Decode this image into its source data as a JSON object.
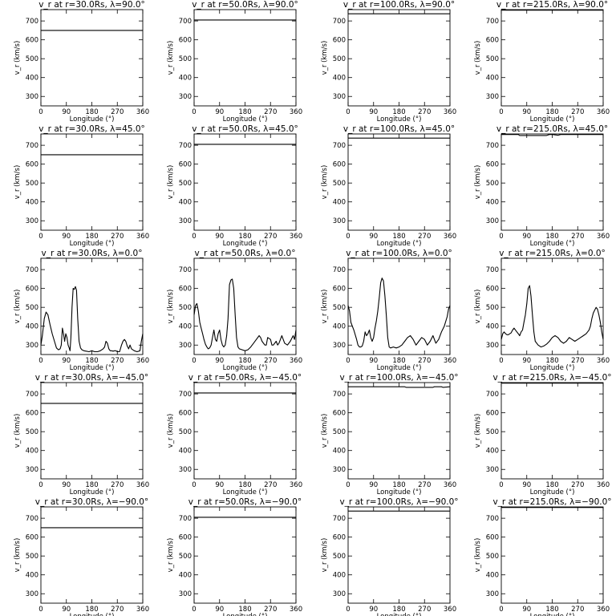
{
  "chart_data": [
    {
      "type": "line",
      "title": "v_r at r=30.0Rs, λ=90.0°",
      "xlabel": "Longitude (°)",
      "ylabel": "v_r (km/s)",
      "xlim": [
        0,
        360
      ],
      "ylim": [
        250,
        760
      ],
      "xticks": [
        "0",
        "90",
        "180",
        "270",
        "360"
      ],
      "yticks": [
        "300",
        "400",
        "500",
        "600",
        "700"
      ],
      "series": [
        {
          "x": [
            0,
            360
          ],
          "y": [
            650,
            650
          ]
        }
      ]
    },
    {
      "type": "line",
      "title": "v_r at r=50.0Rs, λ=90.0°",
      "xlabel": "Longitude (°)",
      "ylabel": "v_r (km/s)",
      "xlim": [
        0,
        360
      ],
      "ylim": [
        250,
        760
      ],
      "xticks": [
        "0",
        "90",
        "180",
        "270",
        "360"
      ],
      "yticks": [
        "300",
        "400",
        "500",
        "600",
        "700"
      ],
      "series": [
        {
          "x": [
            0,
            360
          ],
          "y": [
            705,
            705
          ]
        }
      ]
    },
    {
      "type": "line",
      "title": "v_r at r=100.0Rs, λ=90.0°",
      "xlabel": "Longitude (°)",
      "ylabel": "v_r (km/s)",
      "xlim": [
        0,
        360
      ],
      "ylim": [
        250,
        760
      ],
      "xticks": [
        "0",
        "90",
        "180",
        "270",
        "360"
      ],
      "yticks": [
        "300",
        "400",
        "500",
        "600",
        "700"
      ],
      "series": [
        {
          "x": [
            0,
            360
          ],
          "y": [
            738,
            738
          ]
        }
      ]
    },
    {
      "type": "line",
      "title": "v_r at r=215.0Rs, λ=90.0°",
      "xlabel": "Longitude (°)",
      "ylabel": "v_r (km/s)",
      "xlim": [
        0,
        360
      ],
      "ylim": [
        250,
        760
      ],
      "xticks": [
        "0",
        "90",
        "180",
        "270",
        "360"
      ],
      "yticks": [
        "300",
        "400",
        "500",
        "600",
        "700"
      ],
      "series": [
        {
          "x": [
            0,
            360
          ],
          "y": [
            757,
            757
          ]
        }
      ]
    },
    {
      "type": "line",
      "title": "v_r at r=30.0Rs, λ=45.0°",
      "xlabel": "Longitude (°)",
      "ylabel": "v_r (km/s)",
      "xlim": [
        0,
        360
      ],
      "ylim": [
        250,
        760
      ],
      "xticks": [
        "0",
        "90",
        "180",
        "270",
        "360"
      ],
      "yticks": [
        "300",
        "400",
        "500",
        "600",
        "700"
      ],
      "series": [
        {
          "x": [
            0,
            360
          ],
          "y": [
            650,
            650
          ]
        }
      ]
    },
    {
      "type": "line",
      "title": "v_r at r=50.0Rs, λ=45.0°",
      "xlabel": "Longitude (°)",
      "ylabel": "v_r (km/s)",
      "xlim": [
        0,
        360
      ],
      "ylim": [
        250,
        760
      ],
      "xticks": [
        "0",
        "90",
        "180",
        "270",
        "360"
      ],
      "yticks": [
        "300",
        "400",
        "500",
        "600",
        "700"
      ],
      "series": [
        {
          "x": [
            0,
            360
          ],
          "y": [
            705,
            705
          ]
        }
      ]
    },
    {
      "type": "line",
      "title": "v_r at r=100.0Rs, λ=45.0°",
      "xlabel": "Longitude (°)",
      "ylabel": "v_r (km/s)",
      "xlim": [
        0,
        360
      ],
      "ylim": [
        250,
        760
      ],
      "xticks": [
        "0",
        "90",
        "180",
        "270",
        "360"
      ],
      "yticks": [
        "300",
        "400",
        "500",
        "600",
        "700"
      ],
      "series": [
        {
          "x": [
            0,
            360
          ],
          "y": [
            738,
            738
          ]
        }
      ]
    },
    {
      "type": "line",
      "title": "v_r at r=215.0Rs, λ=45.0°",
      "xlabel": "Longitude (°)",
      "ylabel": "v_r (km/s)",
      "xlim": [
        0,
        360
      ],
      "ylim": [
        250,
        760
      ],
      "xticks": [
        "0",
        "90",
        "180",
        "270",
        "360"
      ],
      "yticks": [
        "300",
        "400",
        "500",
        "600",
        "700"
      ],
      "series": [
        {
          "x": [
            0,
            60,
            65,
            160,
            170,
            180,
            200,
            210,
            360
          ],
          "y": [
            757,
            757,
            752,
            752,
            757,
            757,
            753,
            757,
            757
          ]
        }
      ]
    },
    {
      "type": "line",
      "title": "v_r at r=30.0Rs, λ=0.0°",
      "xlabel": "Longitude (°)",
      "ylabel": "v_r (km/s)",
      "xlim": [
        0,
        360
      ],
      "ylim": [
        250,
        760
      ],
      "xticks": [
        "0",
        "90",
        "180",
        "270",
        "360"
      ],
      "yticks": [
        "300",
        "400",
        "500",
        "600",
        "700"
      ],
      "series": [
        {
          "x": [
            0,
            5,
            12,
            18,
            25,
            32,
            40,
            48,
            55,
            62,
            68,
            72,
            76,
            80,
            84,
            88,
            92,
            96,
            100,
            103,
            106,
            110,
            114,
            118,
            122,
            126,
            130,
            135,
            140,
            145,
            152,
            160,
            170,
            180,
            190,
            200,
            210,
            220,
            225,
            230,
            235,
            240,
            245,
            250,
            255,
            260,
            265,
            270,
            278,
            285,
            290,
            295,
            300,
            305,
            310,
            315,
            320,
            330,
            340,
            350,
            355,
            360
          ],
          "y": [
            300,
            350,
            440,
            475,
            460,
            410,
            360,
            320,
            285,
            275,
            280,
            300,
            390,
            360,
            320,
            360,
            340,
            300,
            285,
            270,
            340,
            500,
            600,
            595,
            610,
            590,
            440,
            320,
            285,
            275,
            270,
            268,
            265,
            270,
            265,
            265,
            270,
            280,
            290,
            320,
            310,
            280,
            270,
            270,
            268,
            270,
            270,
            265,
            265,
            300,
            320,
            330,
            320,
            295,
            280,
            300,
            280,
            270,
            265,
            270,
            320,
            360
          ]
        }
      ]
    },
    {
      "type": "line",
      "title": "v_r at r=50.0Rs, λ=0.0°",
      "xlabel": "Longitude (°)",
      "ylabel": "v_r (km/s)",
      "xlim": [
        0,
        360
      ],
      "ylim": [
        250,
        760
      ],
      "xticks": [
        "0",
        "90",
        "180",
        "270",
        "360"
      ],
      "yticks": [
        "300",
        "400",
        "500",
        "600",
        "700"
      ],
      "series": [
        {
          "x": [
            0,
            5,
            10,
            15,
            20,
            25,
            30,
            35,
            40,
            45,
            50,
            55,
            60,
            65,
            70,
            75,
            80,
            85,
            90,
            95,
            100,
            105,
            110,
            115,
            120,
            125,
            130,
            135,
            140,
            145,
            150,
            155,
            160,
            170,
            180,
            190,
            200,
            210,
            220,
            230,
            235,
            240,
            250,
            255,
            260,
            270,
            275,
            280,
            290,
            295,
            300,
            310,
            315,
            320,
            330,
            340,
            350,
            355,
            360
          ],
          "y": [
            460,
            510,
            520,
            480,
            420,
            390,
            360,
            330,
            305,
            290,
            280,
            285,
            300,
            340,
            380,
            330,
            320,
            360,
            380,
            330,
            300,
            290,
            300,
            350,
            440,
            620,
            645,
            650,
            600,
            460,
            340,
            290,
            280,
            275,
            270,
            275,
            290,
            310,
            330,
            350,
            340,
            320,
            300,
            300,
            340,
            330,
            300,
            300,
            320,
            300,
            310,
            350,
            330,
            310,
            300,
            320,
            350,
            330,
            380
          ]
        }
      ]
    },
    {
      "type": "line",
      "title": "v_r at r=100.0Rs, λ=0.0°",
      "xlabel": "Longitude (°)",
      "ylabel": "v_r (km/s)",
      "xlim": [
        0,
        360
      ],
      "ylim": [
        250,
        760
      ],
      "xticks": [
        "0",
        "90",
        "180",
        "270",
        "360"
      ],
      "yticks": [
        "300",
        "400",
        "500",
        "600",
        "700"
      ],
      "series": [
        {
          "x": [
            0,
            5,
            10,
            20,
            30,
            35,
            40,
            45,
            50,
            55,
            60,
            65,
            70,
            75,
            80,
            85,
            90,
            95,
            100,
            105,
            110,
            115,
            120,
            125,
            130,
            135,
            140,
            145,
            150,
            160,
            170,
            180,
            190,
            200,
            210,
            220,
            230,
            240,
            250,
            260,
            270,
            280,
            290,
            300,
            310,
            320,
            330,
            340,
            350,
            355,
            360
          ],
          "y": [
            510,
            480,
            420,
            380,
            330,
            300,
            290,
            290,
            295,
            320,
            370,
            350,
            360,
            380,
            340,
            320,
            340,
            390,
            430,
            480,
            550,
            630,
            655,
            640,
            560,
            460,
            340,
            290,
            285,
            290,
            285,
            290,
            300,
            320,
            340,
            350,
            330,
            300,
            320,
            340,
            330,
            300,
            320,
            350,
            310,
            330,
            370,
            400,
            450,
            490,
            510
          ]
        }
      ]
    },
    {
      "type": "line",
      "title": "v_r at r=215.0Rs, λ=0.0°",
      "xlabel": "Longitude (°)",
      "ylabel": "v_r (km/s)",
      "xlim": [
        0,
        360
      ],
      "ylim": [
        250,
        760
      ],
      "xticks": [
        "0",
        "90",
        "180",
        "270",
        "360"
      ],
      "yticks": [
        "300",
        "400",
        "500",
        "600",
        "700"
      ],
      "series": [
        {
          "x": [
            0,
            5,
            10,
            15,
            20,
            25,
            30,
            35,
            40,
            45,
            50,
            55,
            60,
            65,
            70,
            75,
            80,
            85,
            90,
            95,
            100,
            105,
            110,
            115,
            120,
            130,
            140,
            150,
            160,
            170,
            180,
            190,
            200,
            210,
            220,
            230,
            240,
            250,
            260,
            270,
            280,
            290,
            300,
            310,
            315,
            320,
            325,
            330,
            335,
            340,
            345,
            350,
            355,
            360
          ],
          "y": [
            330,
            360,
            370,
            360,
            355,
            355,
            360,
            365,
            380,
            390,
            380,
            370,
            360,
            350,
            370,
            380,
            420,
            460,
            520,
            600,
            615,
            560,
            460,
            370,
            320,
            300,
            290,
            295,
            305,
            320,
            340,
            350,
            340,
            320,
            310,
            320,
            340,
            330,
            320,
            330,
            340,
            350,
            360,
            380,
            400,
            440,
            470,
            485,
            500,
            490,
            460,
            420,
            370,
            330
          ]
        }
      ]
    },
    {
      "type": "line",
      "title": "v_r at r=30.0Rs, λ=−45.0°",
      "xlabel": "Longitude (°)",
      "ylabel": "v_r (km/s)",
      "xlim": [
        0,
        360
      ],
      "ylim": [
        250,
        760
      ],
      "xticks": [
        "0",
        "90",
        "180",
        "270",
        "360"
      ],
      "yticks": [
        "300",
        "400",
        "500",
        "600",
        "700"
      ],
      "series": [
        {
          "x": [
            0,
            360
          ],
          "y": [
            650,
            650
          ]
        }
      ]
    },
    {
      "type": "line",
      "title": "v_r at r=50.0Rs, λ=−45.0°",
      "xlabel": "Longitude (°)",
      "ylabel": "v_r (km/s)",
      "xlim": [
        0,
        360
      ],
      "ylim": [
        250,
        760
      ],
      "xticks": [
        "0",
        "90",
        "180",
        "270",
        "360"
      ],
      "yticks": [
        "300",
        "400",
        "500",
        "600",
        "700"
      ],
      "series": [
        {
          "x": [
            0,
            360
          ],
          "y": [
            705,
            705
          ]
        }
      ]
    },
    {
      "type": "line",
      "title": "v_r at r=100.0Rs, λ=−45.0°",
      "xlabel": "Longitude (°)",
      "ylabel": "v_r (km/s)",
      "xlim": [
        0,
        360
      ],
      "ylim": [
        250,
        760
      ],
      "xticks": [
        "0",
        "90",
        "180",
        "270",
        "360"
      ],
      "yticks": [
        "300",
        "400",
        "500",
        "600",
        "700"
      ],
      "series": [
        {
          "x": [
            0,
            200,
            205,
            300,
            305,
            330,
            335,
            360
          ],
          "y": [
            738,
            738,
            735,
            735,
            738,
            738,
            735,
            738
          ]
        }
      ]
    },
    {
      "type": "line",
      "title": "v_r at r=215.0Rs, λ=−45.0°",
      "xlabel": "Longitude (°)",
      "ylabel": "v_r (km/s)",
      "xlim": [
        0,
        360
      ],
      "ylim": [
        250,
        760
      ],
      "xticks": [
        "0",
        "90",
        "180",
        "270",
        "360"
      ],
      "yticks": [
        "300",
        "400",
        "500",
        "600",
        "700"
      ],
      "series": [
        {
          "x": [
            0,
            360
          ],
          "y": [
            757,
            757
          ]
        }
      ]
    },
    {
      "type": "line",
      "title": "v_r at r=30.0Rs, λ=−90.0°",
      "xlabel": "Longitude (°)",
      "ylabel": "v_r (km/s)",
      "xlim": [
        0,
        360
      ],
      "ylim": [
        250,
        760
      ],
      "xticks": [
        "0",
        "90",
        "180",
        "270",
        "360"
      ],
      "yticks": [
        "300",
        "400",
        "500",
        "600",
        "700"
      ],
      "series": [
        {
          "x": [
            0,
            360
          ],
          "y": [
            650,
            650
          ]
        }
      ]
    },
    {
      "type": "line",
      "title": "v_r at r=50.0Rs, λ=−90.0°",
      "xlabel": "Longitude (°)",
      "ylabel": "v_r (km/s)",
      "xlim": [
        0,
        360
      ],
      "ylim": [
        250,
        760
      ],
      "xticks": [
        "0",
        "90",
        "180",
        "270",
        "360"
      ],
      "yticks": [
        "300",
        "400",
        "500",
        "600",
        "700"
      ],
      "series": [
        {
          "x": [
            0,
            360
          ],
          "y": [
            705,
            705
          ]
        }
      ]
    },
    {
      "type": "line",
      "title": "v_r at r=100.0Rs, λ=−90.0°",
      "xlabel": "Longitude (°)",
      "ylabel": "v_r (km/s)",
      "xlim": [
        0,
        360
      ],
      "ylim": [
        250,
        760
      ],
      "xticks": [
        "0",
        "90",
        "180",
        "270",
        "360"
      ],
      "yticks": [
        "300",
        "400",
        "500",
        "600",
        "700"
      ],
      "series": [
        {
          "x": [
            0,
            360
          ],
          "y": [
            738,
            738
          ]
        }
      ]
    },
    {
      "type": "line",
      "title": "v_r at r=215.0Rs, λ=−90.0°",
      "xlabel": "Longitude (°)",
      "ylabel": "v_r (km/s)",
      "xlim": [
        0,
        360
      ],
      "ylim": [
        250,
        760
      ],
      "xticks": [
        "0",
        "90",
        "180",
        "270",
        "360"
      ],
      "yticks": [
        "300",
        "400",
        "500",
        "600",
        "700"
      ],
      "series": [
        {
          "x": [
            0,
            360
          ],
          "y": [
            757,
            757
          ]
        }
      ]
    }
  ]
}
